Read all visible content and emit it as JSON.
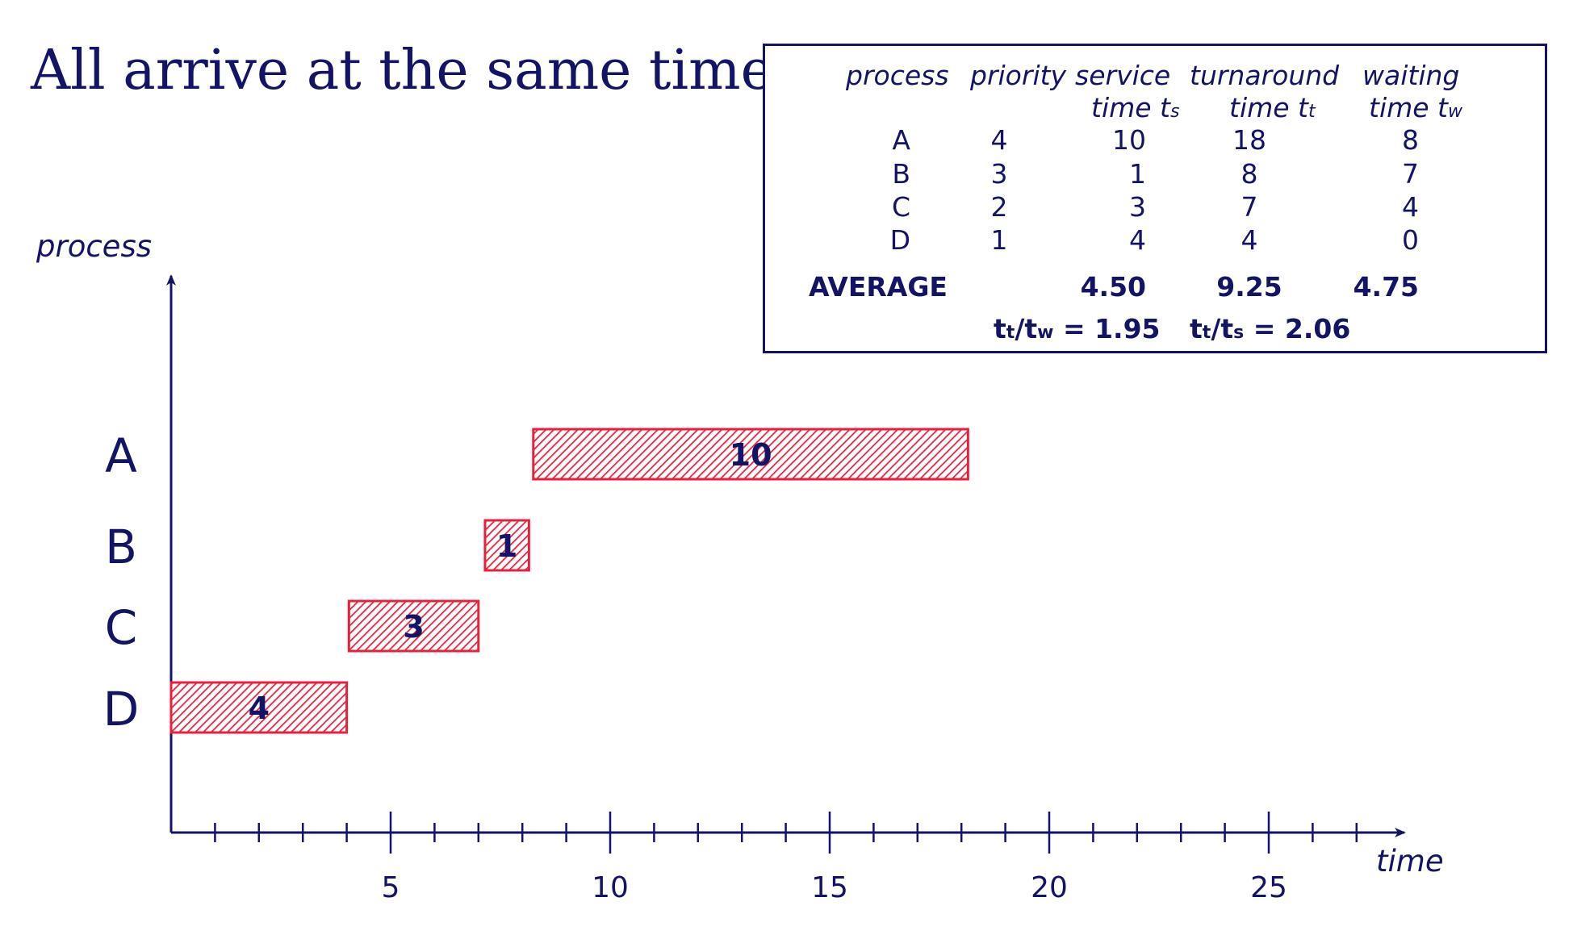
{
  "title": "All arrive at the same time.",
  "table": {
    "headers": {
      "process": "process",
      "priority": "priority",
      "service_line1": "service",
      "service_line2": "time t",
      "service_sub": "s",
      "turnaround_line1": "turnaround",
      "turnaround_line2": "time t",
      "turnaround_sub": "t",
      "waiting_line1": "waiting",
      "waiting_line2": "time t",
      "waiting_sub": "w"
    },
    "rows": [
      {
        "process": "A",
        "priority": "4",
        "service": "10",
        "turnaround": "18",
        "waiting": "8"
      },
      {
        "process": "B",
        "priority": "3",
        "service": "1",
        "turnaround": "8",
        "waiting": "7"
      },
      {
        "process": "C",
        "priority": "2",
        "service": "3",
        "turnaround": "7",
        "waiting": "4"
      },
      {
        "process": "D",
        "priority": "1",
        "service": "4",
        "turnaround": "4",
        "waiting": "0"
      }
    ],
    "average": {
      "label": "AVERAGE",
      "service": "4.50",
      "turnaround": "9.25",
      "waiting": "4.75"
    },
    "ratio1": {
      "a": "t",
      "a_sub": "t",
      "slash": "/t",
      "b_sub": "w",
      "value": " = 1.95"
    },
    "ratio2": {
      "a": "t",
      "a_sub": "t",
      "slash": "/t",
      "b_sub": "s",
      "value": " = 2.06"
    }
  },
  "chart_data": {
    "type": "gantt",
    "ylabel": "process",
    "xlabel": "time",
    "xlim": [
      0,
      28
    ],
    "x_ticks": [
      5,
      10,
      15,
      20,
      25
    ],
    "categories": [
      "A",
      "B",
      "C",
      "D"
    ],
    "bars": [
      {
        "process": "A",
        "start": 8.25,
        "end": 18.15,
        "label": "10"
      },
      {
        "process": "B",
        "start": 7.15,
        "end": 8.15,
        "label": "1"
      },
      {
        "process": "C",
        "start": 4.05,
        "end": 7.0,
        "label": "3"
      },
      {
        "process": "D",
        "start": 0.0,
        "end": 4.0,
        "label": "4"
      }
    ],
    "bar_color": "#e8203c",
    "axis_color": "#141466"
  }
}
